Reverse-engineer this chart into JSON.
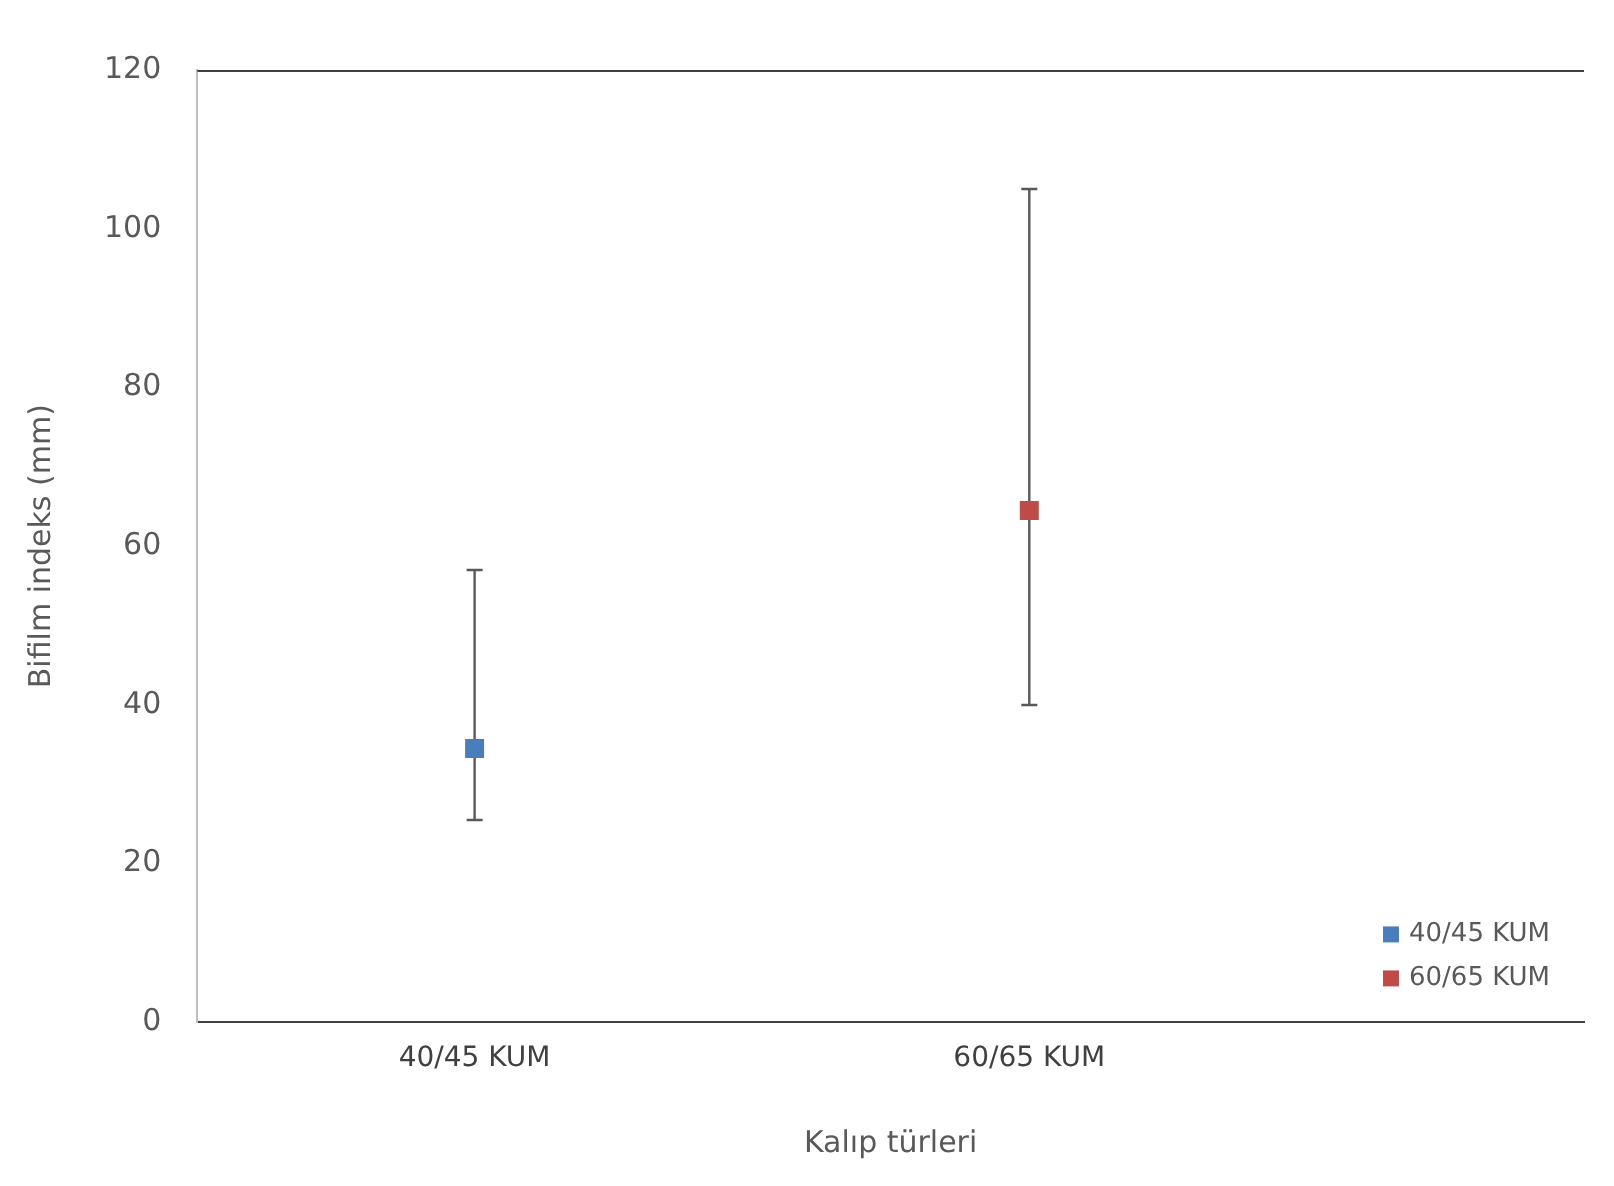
{
  "chart_data": {
    "type": "scatter",
    "xlabel": "Kalıp türleri",
    "ylabel": "Bifilm indeks (mm)",
    "categories": [
      "40/45 KUM",
      "60/65 KUM"
    ],
    "series": [
      {
        "name": "40/45 KUM",
        "color": "#4a7ebb",
        "x": [
          "40/45 KUM"
        ],
        "values": [
          34.5
        ],
        "errors": [
          [
            25.5,
            57
          ]
        ]
      },
      {
        "name": "60/65 KUM",
        "color": "#be4b48",
        "x": [
          "60/65 KUM"
        ],
        "values": [
          64.5
        ],
        "errors": [
          [
            40,
            105
          ]
        ]
      }
    ],
    "ylim": [
      0,
      120
    ],
    "yticks": [
      0,
      20,
      40,
      60,
      80,
      100,
      120
    ],
    "grid": false,
    "legend": "bottom right",
    "marker": "square"
  }
}
